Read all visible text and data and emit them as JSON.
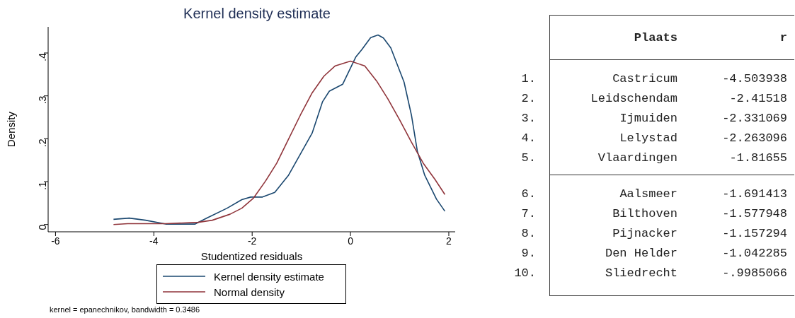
{
  "chart_data": [
    {
      "type": "line",
      "title": "Kernel density estimate",
      "xlabel": "Studentized residuals",
      "ylabel": "Density",
      "xlim": [
        -6.15,
        2.13
      ],
      "ylim": [
        -0.017,
        0.461
      ],
      "xticks": [
        -6,
        -4,
        -2,
        0,
        2
      ],
      "yticks": [
        0,
        {
          "value": 0.1,
          "label": ".1"
        },
        {
          "value": 0.2,
          "label": ".2"
        },
        {
          "value": 0.3,
          "label": ".3"
        },
        {
          "value": 0.4,
          "label": ".4"
        }
      ],
      "legend": "bottom",
      "marker": "none",
      "line_style": "solid",
      "annotations": [
        "kernel = epanechnikov, bandwidth = 0.3486"
      ],
      "series": [
        {
          "name": "Kernel density estimate",
          "color": "#1a476f",
          "x": [
            -4.82,
            -4.5,
            -4.17,
            -3.76,
            -3.16,
            -2.92,
            -2.51,
            -2.21,
            -2.03,
            -1.79,
            -1.54,
            -1.26,
            -1.02,
            -0.78,
            -0.57,
            -0.43,
            -0.16,
            0.11,
            0.23,
            0.41,
            0.56,
            0.67,
            0.82,
            1.09,
            1.24,
            1.36,
            1.51,
            1.75,
            1.92
          ],
          "values": [
            0.012,
            0.015,
            0.01,
            0.001,
            0.001,
            0.015,
            0.038,
            0.058,
            0.064,
            0.064,
            0.075,
            0.115,
            0.164,
            0.213,
            0.286,
            0.311,
            0.327,
            0.391,
            0.408,
            0.436,
            0.442,
            0.435,
            0.412,
            0.332,
            0.255,
            0.171,
            0.115,
            0.059,
            0.031
          ]
        },
        {
          "name": "Normal density",
          "color": "#90353b",
          "x": [
            -4.82,
            -4.53,
            -3.76,
            -3.1,
            -2.81,
            -2.45,
            -2.21,
            -1.97,
            -1.73,
            -1.5,
            -1.26,
            -1.02,
            -0.78,
            -0.54,
            -0.31,
            0,
            0.29,
            0.53,
            0.76,
            1.0,
            1.24,
            1.48,
            1.72,
            1.92
          ],
          "values": [
            0,
            0.002,
            0.002,
            0.005,
            0.01,
            0.024,
            0.038,
            0.062,
            0.101,
            0.143,
            0.199,
            0.255,
            0.307,
            0.346,
            0.37,
            0.381,
            0.37,
            0.335,
            0.293,
            0.244,
            0.192,
            0.143,
            0.105,
            0.07
          ]
        }
      ]
    },
    {
      "type": "other",
      "annotations": [
        "Plaats",
        "r",
        "1.",
        "2.",
        "3.",
        "4.",
        "5.",
        "6.",
        "7.",
        "8.",
        "9.",
        "10."
      ],
      "categories": [
        "Castricum",
        "Leidschendam",
        "Ijmuiden",
        "Lelystad",
        "Vlaardingen",
        "Aalsmeer",
        "Bilthoven",
        "Pijnacker",
        "Den Helder",
        "Sliedrecht"
      ],
      "value_labels": [
        "-4.503938",
        "-2.41518",
        "-2.331069",
        "-2.263096",
        "-1.81655",
        "-1.691413",
        "-1.577948",
        "-1.157294",
        "-1.042285",
        "-.9985066"
      ]
    }
  ]
}
